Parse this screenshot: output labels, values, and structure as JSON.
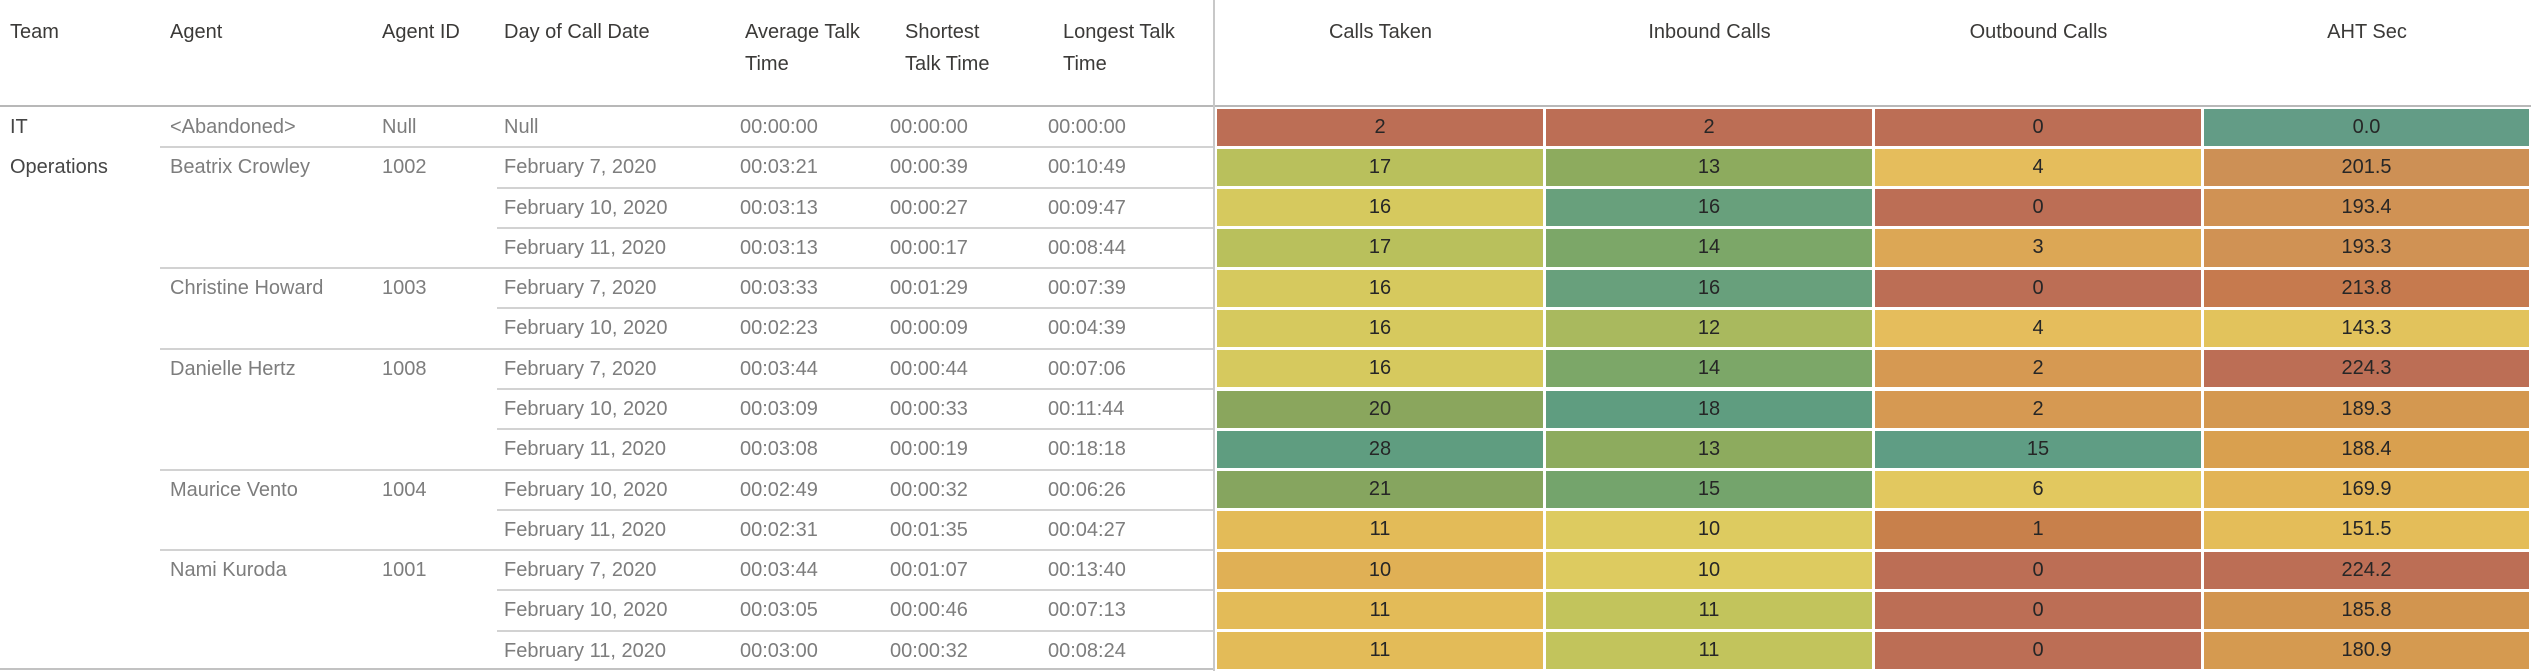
{
  "header": {
    "left": [
      "Team",
      "Agent",
      "Agent ID",
      "Day of Call Date",
      "Average Talk Time",
      "Shortest Talk Time",
      "Longest Talk Time"
    ],
    "right": [
      "Calls Taken",
      "Inbound Calls",
      "Outbound Calls",
      "AHT Sec"
    ]
  },
  "team": "IT Operations",
  "groups": [
    {
      "agent": "<Abandoned>",
      "agent_id": "Null",
      "row_start": 0,
      "row_count": 1
    },
    {
      "agent": "Beatrix Crowley",
      "agent_id": "1002",
      "row_start": 1,
      "row_count": 3
    },
    {
      "agent": "Christine Howard",
      "agent_id": "1003",
      "row_start": 4,
      "row_count": 2
    },
    {
      "agent": "Danielle Hertz",
      "agent_id": "1008",
      "row_start": 6,
      "row_count": 3
    },
    {
      "agent": "Maurice Vento",
      "agent_id": "1004",
      "row_start": 9,
      "row_count": 2
    },
    {
      "agent": "Nami Kuroda",
      "agent_id": "1001",
      "row_start": 11,
      "row_count": 3
    }
  ],
  "rows": [
    {
      "date": "Null",
      "avg": "00:00:00",
      "shortest": "00:00:00",
      "longest": "00:00:00",
      "calls_taken": {
        "v": "2",
        "bg": "#bc6e55"
      },
      "inbound": {
        "v": "2",
        "bg": "#bc6e55"
      },
      "outbound": {
        "v": "0",
        "bg": "#bc6e55"
      },
      "aht": {
        "v": "0.0",
        "bg": "#639c86"
      }
    },
    {
      "date": "February 7, 2020",
      "avg": "00:03:21",
      "shortest": "00:00:39",
      "longest": "00:10:49",
      "calls_taken": {
        "v": "17",
        "bg": "#b9c05c"
      },
      "inbound": {
        "v": "13",
        "bg": "#8dab5e"
      },
      "outbound": {
        "v": "4",
        "bg": "#e5bd5c"
      },
      "aht": {
        "v": "201.5",
        "bg": "#cd9055"
      }
    },
    {
      "date": "February 10, 2020",
      "avg": "00:03:13",
      "shortest": "00:00:27",
      "longest": "00:09:47",
      "calls_taken": {
        "v": "16",
        "bg": "#d6c95e"
      },
      "inbound": {
        "v": "16",
        "bg": "#68a07c"
      },
      "outbound": {
        "v": "0",
        "bg": "#bc6e55"
      },
      "aht": {
        "v": "193.4",
        "bg": "#d09254"
      }
    },
    {
      "date": "February 11, 2020",
      "avg": "00:03:13",
      "shortest": "00:00:17",
      "longest": "00:08:44",
      "calls_taken": {
        "v": "17",
        "bg": "#b9c05c"
      },
      "inbound": {
        "v": "14",
        "bg": "#7ca768"
      },
      "outbound": {
        "v": "3",
        "bg": "#dca755"
      },
      "aht": {
        "v": "193.3",
        "bg": "#d09254"
      }
    },
    {
      "date": "February 7, 2020",
      "avg": "00:03:33",
      "shortest": "00:01:29",
      "longest": "00:07:39",
      "calls_taken": {
        "v": "16",
        "bg": "#d6c95e"
      },
      "inbound": {
        "v": "16",
        "bg": "#68a07c"
      },
      "outbound": {
        "v": "0",
        "bg": "#bc6e55"
      },
      "aht": {
        "v": "213.8",
        "bg": "#c67a4e"
      }
    },
    {
      "date": "February 10, 2020",
      "avg": "00:02:23",
      "shortest": "00:00:09",
      "longest": "00:04:39",
      "calls_taken": {
        "v": "16",
        "bg": "#d6c95e"
      },
      "inbound": {
        "v": "12",
        "bg": "#a9b95e"
      },
      "outbound": {
        "v": "4",
        "bg": "#e5bd5c"
      },
      "aht": {
        "v": "143.3",
        "bg": "#e2c35c"
      }
    },
    {
      "date": "February 7, 2020",
      "avg": "00:03:44",
      "shortest": "00:00:44",
      "longest": "00:07:06",
      "calls_taken": {
        "v": "16",
        "bg": "#d6c95e"
      },
      "inbound": {
        "v": "14",
        "bg": "#7ca768"
      },
      "outbound": {
        "v": "2",
        "bg": "#d69952"
      },
      "aht": {
        "v": "224.3",
        "bg": "#bc6e55"
      }
    },
    {
      "date": "February 10, 2020",
      "avg": "00:03:09",
      "shortest": "00:00:33",
      "longest": "00:11:44",
      "calls_taken": {
        "v": "20",
        "bg": "#8aa65d"
      },
      "inbound": {
        "v": "18",
        "bg": "#5f9d80"
      },
      "outbound": {
        "v": "2",
        "bg": "#d69952"
      },
      "aht": {
        "v": "189.3",
        "bg": "#d49850"
      }
    },
    {
      "date": "February 11, 2020",
      "avg": "00:03:08",
      "shortest": "00:00:19",
      "longest": "00:18:18",
      "calls_taken": {
        "v": "28",
        "bg": "#5f9d80"
      },
      "inbound": {
        "v": "13",
        "bg": "#8dab5e"
      },
      "outbound": {
        "v": "15",
        "bg": "#5f9d84"
      },
      "aht": {
        "v": "188.4",
        "bg": "#d9a04f"
      }
    },
    {
      "date": "February 10, 2020",
      "avg": "00:02:49",
      "shortest": "00:00:32",
      "longest": "00:06:26",
      "calls_taken": {
        "v": "21",
        "bg": "#86a55f"
      },
      "inbound": {
        "v": "15",
        "bg": "#74a46c"
      },
      "outbound": {
        "v": "6",
        "bg": "#e2c85f"
      },
      "aht": {
        "v": "169.9",
        "bg": "#e2b456"
      }
    },
    {
      "date": "February 11, 2020",
      "avg": "00:02:31",
      "shortest": "00:01:35",
      "longest": "00:04:27",
      "calls_taken": {
        "v": "11",
        "bg": "#e3bb58"
      },
      "inbound": {
        "v": "10",
        "bg": "#ddcb60"
      },
      "outbound": {
        "v": "1",
        "bg": "#c8804b"
      },
      "aht": {
        "v": "151.5",
        "bg": "#e4bd59"
      }
    },
    {
      "date": "February 7, 2020",
      "avg": "00:03:44",
      "shortest": "00:01:07",
      "longest": "00:13:40",
      "calls_taken": {
        "v": "10",
        "bg": "#e0b055"
      },
      "inbound": {
        "v": "10",
        "bg": "#ddcb60"
      },
      "outbound": {
        "v": "0",
        "bg": "#bc6e55"
      },
      "aht": {
        "v": "224.2",
        "bg": "#bc6e55"
      }
    },
    {
      "date": "February 10, 2020",
      "avg": "00:03:05",
      "shortest": "00:00:46",
      "longest": "00:07:13",
      "calls_taken": {
        "v": "11",
        "bg": "#e3bb58"
      },
      "inbound": {
        "v": "11",
        "bg": "#c2c45c"
      },
      "outbound": {
        "v": "0",
        "bg": "#bc6e55"
      },
      "aht": {
        "v": "185.8",
        "bg": "#d2954f"
      }
    },
    {
      "date": "February 11, 2020",
      "avg": "00:03:00",
      "shortest": "00:00:32",
      "longest": "00:08:24",
      "calls_taken": {
        "v": "11",
        "bg": "#e3bb58"
      },
      "inbound": {
        "v": "11",
        "bg": "#c2c45c"
      },
      "outbound": {
        "v": "0",
        "bg": "#bc6e55"
      },
      "aht": {
        "v": "180.9",
        "bg": "#d59a50"
      }
    }
  ],
  "colors": {
    "divider": "#c8c8c8",
    "header_line": "#b8b8b8",
    "row_line": "#d2d2d2",
    "header_text": "#3b3a38",
    "body_text": "#7d7d7d",
    "mark_text": "#262626"
  },
  "chart_data": {
    "type": "table",
    "title": "",
    "columns": [
      "Team",
      "Agent",
      "Agent ID",
      "Day of Call Date",
      "Average Talk Time",
      "Shortest Talk Time",
      "Longest Talk Time",
      "Calls Taken",
      "Inbound Calls",
      "Outbound Calls",
      "AHT Sec"
    ],
    "color_encoding": "Calls Taken / Inbound Calls / Outbound Calls colored red(low) to teal-green(high); AHT Sec colored teal(low) to red(high)",
    "rows": [
      [
        "IT Operations",
        "<Abandoned>",
        "Null",
        "Null",
        "00:00:00",
        "00:00:00",
        "00:00:00",
        2,
        2,
        0,
        0.0
      ],
      [
        "IT Operations",
        "Beatrix Crowley",
        "1002",
        "February 7, 2020",
        "00:03:21",
        "00:00:39",
        "00:10:49",
        17,
        13,
        4,
        201.5
      ],
      [
        "IT Operations",
        "Beatrix Crowley",
        "1002",
        "February 10, 2020",
        "00:03:13",
        "00:00:27",
        "00:09:47",
        16,
        16,
        0,
        193.4
      ],
      [
        "IT Operations",
        "Beatrix Crowley",
        "1002",
        "February 11, 2020",
        "00:03:13",
        "00:00:17",
        "00:08:44",
        17,
        14,
        3,
        193.3
      ],
      [
        "IT Operations",
        "Christine Howard",
        "1003",
        "February 7, 2020",
        "00:03:33",
        "00:01:29",
        "00:07:39",
        16,
        16,
        0,
        213.8
      ],
      [
        "IT Operations",
        "Christine Howard",
        "1003",
        "February 10, 2020",
        "00:02:23",
        "00:00:09",
        "00:04:39",
        16,
        12,
        4,
        143.3
      ],
      [
        "IT Operations",
        "Danielle Hertz",
        "1008",
        "February 7, 2020",
        "00:03:44",
        "00:00:44",
        "00:07:06",
        16,
        14,
        2,
        224.3
      ],
      [
        "IT Operations",
        "Danielle Hertz",
        "1008",
        "February 10, 2020",
        "00:03:09",
        "00:00:33",
        "00:11:44",
        20,
        18,
        2,
        189.3
      ],
      [
        "IT Operations",
        "Danielle Hertz",
        "1008",
        "February 11, 2020",
        "00:03:08",
        "00:00:19",
        "00:18:18",
        28,
        13,
        15,
        188.4
      ],
      [
        "IT Operations",
        "Maurice Vento",
        "1004",
        "February 10, 2020",
        "00:02:49",
        "00:00:32",
        "00:06:26",
        21,
        15,
        6,
        169.9
      ],
      [
        "IT Operations",
        "Maurice Vento",
        "1004",
        "February 11, 2020",
        "00:02:31",
        "00:01:35",
        "00:04:27",
        11,
        10,
        1,
        151.5
      ],
      [
        "IT Operations",
        "Nami Kuroda",
        "1001",
        "February 7, 2020",
        "00:03:44",
        "00:01:07",
        "00:13:40",
        10,
        10,
        0,
        224.2
      ],
      [
        "IT Operations",
        "Nami Kuroda",
        "1001",
        "February 10, 2020",
        "00:03:05",
        "00:00:46",
        "00:07:13",
        11,
        11,
        0,
        185.8
      ],
      [
        "IT Operations",
        "Nami Kuroda",
        "1001",
        "February 11, 2020",
        "00:03:00",
        "00:00:32",
        "00:08:24",
        11,
        11,
        0,
        180.9
      ]
    ]
  }
}
